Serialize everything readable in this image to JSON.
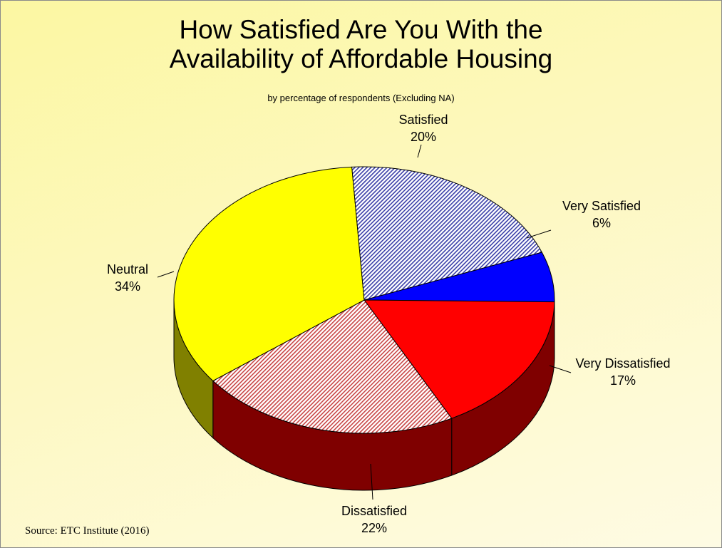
{
  "title_line1": "How Satisfied Are You With the",
  "title_line2": "Availability of Affordable Housing",
  "subtitle": "by percentage of respondents (Excluding NA)",
  "source": "Source:  ETC Institute (2016)",
  "chart_data": {
    "type": "pie",
    "title": "How Satisfied Are You With the Availability of Affordable Housing",
    "subtitle": "by percentage of respondents (Excluding NA)",
    "three_d": true,
    "slices": [
      {
        "name": "Very Satisfied",
        "value": 6,
        "label": "6%",
        "color": "#0000ff",
        "side_color": "#00007f",
        "pattern": "solid"
      },
      {
        "name": "Very Dissatisfied",
        "value": 17,
        "label": "17%",
        "color": "#ff0000",
        "side_color": "#7f0000",
        "pattern": "solid"
      },
      {
        "name": "Dissatisfied",
        "value": 22,
        "label": "22%",
        "color": "#f4b8b8",
        "side_color": "#7f0000",
        "pattern": "hatch-red"
      },
      {
        "name": "Neutral",
        "value": 34,
        "label": "34%",
        "color": "#ffff00",
        "side_color": "#808000",
        "pattern": "solid"
      },
      {
        "name": "Satisfied",
        "value": 20,
        "label": "20%",
        "color": "#c4c8f4",
        "side_color": "#00007f",
        "pattern": "hatch-blue"
      }
    ]
  }
}
